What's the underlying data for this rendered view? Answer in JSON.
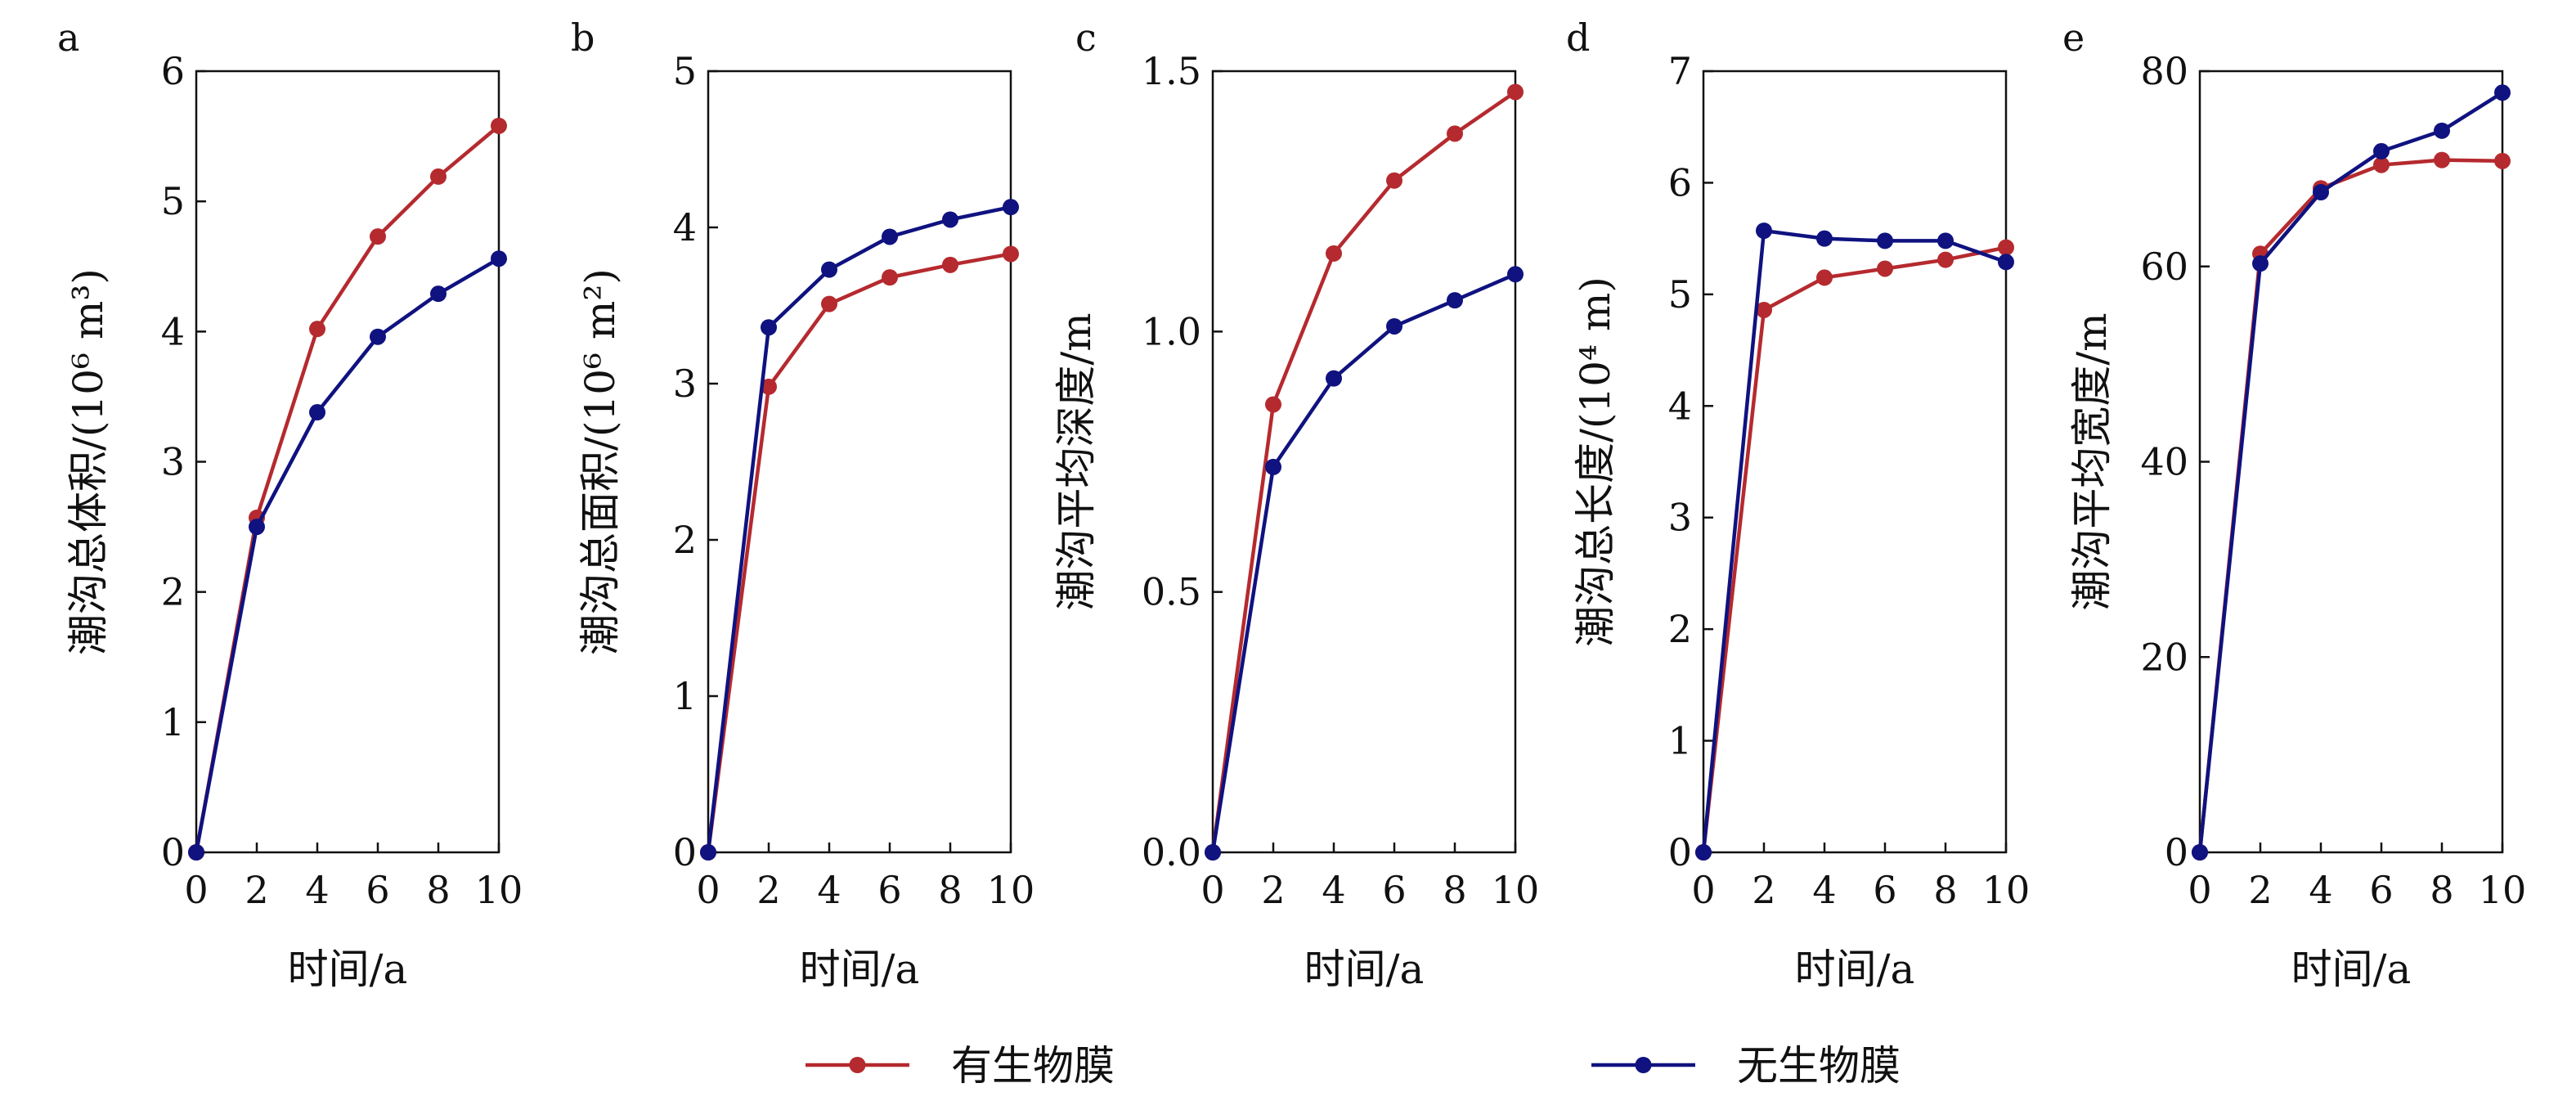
{
  "colors": {
    "series_red": "#B52A2F",
    "series_blue": "#0F127F",
    "axis": "#111111"
  },
  "legend": {
    "placement": "bottom-center"
  },
  "series_names": [
    "有生物膜",
    "无生物膜"
  ],
  "chart_data": [
    {
      "type": "line",
      "panel": "a",
      "xlabel": "时间/a",
      "ylabel": "潮沟总体积/(10⁶ m³)",
      "xlim": [
        0,
        10
      ],
      "ylim": [
        0,
        6
      ],
      "xticks": [
        0,
        2,
        4,
        6,
        8,
        10
      ],
      "yticks": [
        0,
        1,
        2,
        3,
        4,
        5,
        6
      ],
      "ytick_labels": [
        "0",
        "1",
        "2",
        "3",
        "4",
        "5",
        "6"
      ],
      "x": [
        0,
        2,
        4,
        6,
        8,
        10
      ],
      "series": [
        {
          "name": "有生物膜",
          "values": [
            0,
            2.57,
            4.02,
            4.73,
            5.19,
            5.58
          ]
        },
        {
          "name": "无生物膜",
          "values": [
            0,
            2.5,
            3.38,
            3.96,
            4.29,
            4.56
          ]
        }
      ]
    },
    {
      "type": "line",
      "panel": "b",
      "xlabel": "时间/a",
      "ylabel": "潮沟总面积/(10⁶ m²)",
      "xlim": [
        0,
        10
      ],
      "ylim": [
        0,
        5
      ],
      "xticks": [
        0,
        2,
        4,
        6,
        8,
        10
      ],
      "yticks": [
        0,
        1,
        2,
        3,
        4,
        5
      ],
      "ytick_labels": [
        "0",
        "1",
        "2",
        "3",
        "4",
        "5"
      ],
      "x": [
        0,
        2,
        4,
        6,
        8,
        10
      ],
      "series": [
        {
          "name": "有生物膜",
          "values": [
            0,
            2.98,
            3.51,
            3.68,
            3.76,
            3.83
          ]
        },
        {
          "name": "无生物膜",
          "values": [
            0,
            3.36,
            3.73,
            3.94,
            4.05,
            4.13
          ]
        }
      ]
    },
    {
      "type": "line",
      "panel": "c",
      "xlabel": "时间/a",
      "ylabel": "潮沟平均深度/m",
      "xlim": [
        0,
        10
      ],
      "ylim": [
        0,
        1.5
      ],
      "xticks": [
        0,
        2,
        4,
        6,
        8,
        10
      ],
      "yticks": [
        0,
        0.5,
        1.0,
        1.5
      ],
      "ytick_labels": [
        "0.0",
        "0.5",
        "1.0",
        "1.5"
      ],
      "x": [
        0,
        2,
        4,
        6,
        8,
        10
      ],
      "series": [
        {
          "name": "有生物膜",
          "values": [
            0,
            0.86,
            1.15,
            1.29,
            1.38,
            1.46
          ]
        },
        {
          "name": "无生物膜",
          "values": [
            0,
            0.74,
            0.91,
            1.01,
            1.06,
            1.11
          ]
        }
      ]
    },
    {
      "type": "line",
      "panel": "d",
      "xlabel": "时间/a",
      "ylabel": "潮沟总长度/(10⁴ m)",
      "xlim": [
        0,
        10
      ],
      "ylim": [
        0,
        7
      ],
      "xticks": [
        0,
        2,
        4,
        6,
        8,
        10
      ],
      "yticks": [
        0,
        1,
        2,
        3,
        4,
        5,
        6,
        7
      ],
      "ytick_labels": [
        "0",
        "1",
        "2",
        "3",
        "4",
        "5",
        "6",
        "7"
      ],
      "x": [
        0,
        2,
        4,
        6,
        8,
        10
      ],
      "series": [
        {
          "name": "有生物膜",
          "values": [
            0,
            4.86,
            5.15,
            5.23,
            5.31,
            5.42
          ]
        },
        {
          "name": "无生物膜",
          "values": [
            0,
            5.57,
            5.5,
            5.48,
            5.48,
            5.29
          ]
        }
      ]
    },
    {
      "type": "line",
      "panel": "e",
      "xlabel": "时间/a",
      "ylabel": "潮沟平均宽度/m",
      "xlim": [
        0,
        10
      ],
      "ylim": [
        0,
        80
      ],
      "xticks": [
        0,
        2,
        4,
        6,
        8,
        10
      ],
      "yticks": [
        0,
        20,
        40,
        60,
        80
      ],
      "ytick_labels": [
        "0",
        "20",
        "40",
        "60",
        "80"
      ],
      "x": [
        0,
        2,
        4,
        6,
        8,
        10
      ],
      "series": [
        {
          "name": "有生物膜",
          "values": [
            0,
            61.3,
            68.0,
            70.4,
            70.9,
            70.8
          ]
        },
        {
          "name": "无生物膜",
          "values": [
            0,
            60.3,
            67.6,
            71.8,
            73.9,
            77.8
          ]
        }
      ]
    }
  ]
}
